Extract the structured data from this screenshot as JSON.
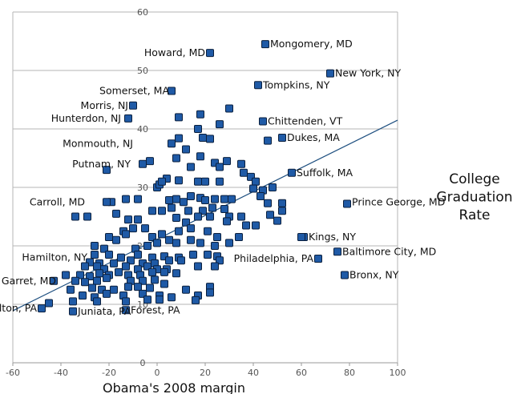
{
  "chart_data": {
    "type": "scatter",
    "xlabel": "Obama's 2008 margin",
    "ylabel_lines": [
      "College",
      "Graduation",
      "Rate"
    ],
    "xlim": [
      -60,
      100
    ],
    "ylim": [
      0,
      60
    ],
    "x_ticks": [
      "-60",
      "-40",
      "-20",
      "0",
      "20",
      "40",
      "60",
      "80",
      "100"
    ],
    "y_ticks": [
      "0",
      "10",
      "20",
      "30",
      "40",
      "50",
      "60"
    ],
    "grid": "horizontal",
    "marker_color": "#1f5aa6",
    "marker_edge_color": "#0a1f3d",
    "trendline_color": "#1f5080",
    "trendline": {
      "x": [
        -60,
        100
      ],
      "y": [
        8.9,
        41.5
      ]
    },
    "annotations": [
      {
        "text": "Howard, MD",
        "x": 22,
        "y": 53,
        "anchor": "end"
      },
      {
        "text": "Mongomery, MD",
        "x": 45,
        "y": 54.5,
        "anchor": "start"
      },
      {
        "text": "New York, NY",
        "x": 72,
        "y": 49.5,
        "anchor": "start"
      },
      {
        "text": "Somerset, MA",
        "x": 7,
        "y": 46.5,
        "anchor": "end"
      },
      {
        "text": "Tompkins, NY",
        "x": 42,
        "y": 47.5,
        "anchor": "start"
      },
      {
        "text": "Morris, NJ",
        "x": -10,
        "y": 44,
        "anchor": "end"
      },
      {
        "text": "Hunterdon, NJ",
        "x": -13,
        "y": 41.8,
        "anchor": "end"
      },
      {
        "text": "Chittenden, VT",
        "x": 44,
        "y": 41.3,
        "anchor": "start"
      },
      {
        "text": "Dukes, MA",
        "x": 52,
        "y": 38.5,
        "anchor": "start"
      },
      {
        "text": "Monmouth, NJ",
        "x": -8,
        "y": 37.5,
        "anchor": "end"
      },
      {
        "text": "Putnam, NY",
        "x": -9,
        "y": 34,
        "anchor": "end"
      },
      {
        "text": "Suffolk, MA",
        "x": 56,
        "y": 32.5,
        "anchor": "start"
      },
      {
        "text": "Carroll, MD",
        "x": -28,
        "y": 27.5,
        "anchor": "end"
      },
      {
        "text": "Prince George, MD",
        "x": 79,
        "y": 27.5,
        "anchor": "start"
      },
      {
        "text": "Kings, NY",
        "x": 61,
        "y": 21.5,
        "anchor": "start"
      },
      {
        "text": "Hamilton, NY",
        "x": -27,
        "y": 18,
        "anchor": "end"
      },
      {
        "text": "Baltimore City, MD",
        "x": 75,
        "y": 19,
        "anchor": "start"
      },
      {
        "text": "Garret, MD",
        "x": -40,
        "y": 14,
        "anchor": "end"
      },
      {
        "text": "Philadelphia, PA",
        "x": 67,
        "y": 17.8,
        "anchor": "end"
      },
      {
        "text": "Bronx, NY",
        "x": 78,
        "y": 15,
        "anchor": "start"
      },
      {
        "text": "Fulton, PA",
        "x": -48,
        "y": 9.3,
        "anchor": "end"
      },
      {
        "text": "Juniata, PA",
        "x": -35,
        "y": 8.8,
        "anchor": "start"
      },
      {
        "text": "Forest, PA",
        "x": -13,
        "y": 9.0,
        "anchor": "start"
      }
    ],
    "points": [
      [
        22,
        53
      ],
      [
        45,
        54.5
      ],
      [
        72,
        49.5
      ],
      [
        6,
        46.5
      ],
      [
        42,
        47.5
      ],
      [
        -10,
        44
      ],
      [
        -12,
        41.8
      ],
      [
        44,
        41.3
      ],
      [
        52,
        38.5
      ],
      [
        46,
        38
      ],
      [
        -3,
        34.5
      ],
      [
        -6,
        34
      ],
      [
        56,
        32.5
      ],
      [
        79,
        27.2
      ],
      [
        61,
        21.5
      ],
      [
        75,
        19
      ],
      [
        67,
        17.8
      ],
      [
        78,
        15
      ],
      [
        -48,
        9.3
      ],
      [
        -35,
        8.8
      ],
      [
        -13,
        9.0
      ],
      [
        30,
        43.5
      ],
      [
        18,
        42.5
      ],
      [
        9,
        42
      ],
      [
        26,
        40.8
      ],
      [
        17,
        40
      ],
      [
        19,
        38.5
      ],
      [
        22,
        38.3
      ],
      [
        9,
        38.4
      ],
      [
        6,
        37.5
      ],
      [
        12,
        36.5
      ],
      [
        18,
        35.3
      ],
      [
        8,
        35
      ],
      [
        29,
        34.5
      ],
      [
        35,
        34
      ],
      [
        24,
        34.2
      ],
      [
        14,
        33.5
      ],
      [
        26,
        33.5
      ],
      [
        -21,
        33
      ],
      [
        4,
        31.5
      ],
      [
        0,
        30
      ],
      [
        1,
        30.5
      ],
      [
        2,
        31
      ],
      [
        9,
        31.2
      ],
      [
        17,
        31
      ],
      [
        20,
        31
      ],
      [
        26,
        31
      ],
      [
        36,
        32.5
      ],
      [
        39,
        31.8
      ],
      [
        41,
        31
      ],
      [
        44,
        29.5
      ],
      [
        48,
        30
      ],
      [
        40,
        29.8
      ],
      [
        -13,
        28
      ],
      [
        -8,
        28
      ],
      [
        -19,
        27.5
      ],
      [
        -21,
        27.5
      ],
      [
        5,
        27.8
      ],
      [
        8,
        28
      ],
      [
        11,
        27.5
      ],
      [
        14,
        28.5
      ],
      [
        18,
        28.2
      ],
      [
        20,
        27.8
      ],
      [
        24,
        28
      ],
      [
        28,
        28
      ],
      [
        31,
        28
      ],
      [
        43,
        28.5
      ],
      [
        46,
        27.3
      ],
      [
        52,
        27.3
      ],
      [
        52,
        26
      ],
      [
        -2,
        26
      ],
      [
        2,
        26
      ],
      [
        6,
        26.5
      ],
      [
        13,
        26
      ],
      [
        19,
        26
      ],
      [
        23,
        26.5
      ],
      [
        28,
        26.3
      ],
      [
        -29,
        25
      ],
      [
        -34,
        25
      ],
      [
        -17,
        25.5
      ],
      [
        -12,
        24.5
      ],
      [
        -8,
        24.5
      ],
      [
        8,
        24.8
      ],
      [
        12,
        24
      ],
      [
        17,
        25
      ],
      [
        22,
        25
      ],
      [
        30,
        25
      ],
      [
        35,
        25
      ],
      [
        -14,
        22.5
      ],
      [
        -10,
        23
      ],
      [
        -5,
        23
      ],
      [
        -2,
        21.5
      ],
      [
        2,
        22
      ],
      [
        9,
        22.5
      ],
      [
        14,
        23
      ],
      [
        21,
        22.5
      ],
      [
        25,
        21.5
      ],
      [
        29,
        24.2
      ],
      [
        37,
        23.5
      ],
      [
        41,
        23.5
      ],
      [
        47,
        25.3
      ],
      [
        50,
        24.3
      ],
      [
        60,
        21.5
      ],
      [
        -20,
        21.5
      ],
      [
        -17,
        21
      ],
      [
        -13,
        22
      ],
      [
        -4,
        20
      ],
      [
        0,
        20.5
      ],
      [
        5,
        21
      ],
      [
        8,
        20.5
      ],
      [
        14,
        21
      ],
      [
        18,
        20.5
      ],
      [
        24,
        20
      ],
      [
        30,
        20.5
      ],
      [
        34,
        21.5
      ],
      [
        -26,
        20
      ],
      [
        -22,
        19.5
      ],
      [
        -9,
        19.5
      ],
      [
        -26,
        18.5
      ],
      [
        -20,
        18.5
      ],
      [
        -15,
        18
      ],
      [
        -8,
        18.5
      ],
      [
        -2,
        18
      ],
      [
        3,
        18.2
      ],
      [
        9,
        18
      ],
      [
        15,
        18.5
      ],
      [
        21,
        18.5
      ],
      [
        25,
        18.2
      ],
      [
        -28,
        17.2
      ],
      [
        -24,
        17
      ],
      [
        -18,
        17
      ],
      [
        -11,
        17.5
      ],
      [
        -6,
        17
      ],
      [
        -1,
        17
      ],
      [
        5,
        17.5
      ],
      [
        10,
        17.5
      ],
      [
        26,
        17.5
      ],
      [
        -30,
        16.5
      ],
      [
        -25,
        16.5
      ],
      [
        -22,
        16
      ],
      [
        -13,
        16.5
      ],
      [
        -8,
        16
      ],
      [
        -4,
        16.5
      ],
      [
        0,
        16
      ],
      [
        4,
        16
      ],
      [
        17,
        16.5
      ],
      [
        24,
        16.5
      ],
      [
        -38,
        15
      ],
      [
        -32,
        15
      ],
      [
        -28,
        14.8
      ],
      [
        -24,
        15.3
      ],
      [
        -20,
        15
      ],
      [
        -16,
        15.5
      ],
      [
        -12,
        15
      ],
      [
        -7,
        15
      ],
      [
        -2,
        15.5
      ],
      [
        3,
        15.5
      ],
      [
        8,
        15.3
      ],
      [
        -43,
        14
      ],
      [
        -34,
        14
      ],
      [
        -30,
        13.8
      ],
      [
        -25,
        14
      ],
      [
        -21,
        14.5
      ],
      [
        -11,
        14
      ],
      [
        -6,
        14
      ],
      [
        -1,
        14.2
      ],
      [
        -36,
        12.5
      ],
      [
        -27,
        12.8
      ],
      [
        -23,
        12.5
      ],
      [
        -18,
        12.5
      ],
      [
        -12,
        13
      ],
      [
        -8,
        13
      ],
      [
        -3,
        12.8
      ],
      [
        3,
        13.5
      ],
      [
        12,
        12.5
      ],
      [
        22,
        13
      ],
      [
        -31,
        11.5
      ],
      [
        -26,
        11.2
      ],
      [
        -21,
        11.8
      ],
      [
        -14,
        11.5
      ],
      [
        -6,
        11.8
      ],
      [
        1,
        11.5
      ],
      [
        6,
        11.2
      ],
      [
        17,
        11.5
      ],
      [
        22,
        12
      ],
      [
        -45,
        10.2
      ],
      [
        -35,
        10.5
      ],
      [
        -25,
        10.5
      ],
      [
        -13,
        10.5
      ],
      [
        -4,
        10.8
      ],
      [
        1,
        10.8
      ],
      [
        16,
        10.7
      ]
    ]
  }
}
